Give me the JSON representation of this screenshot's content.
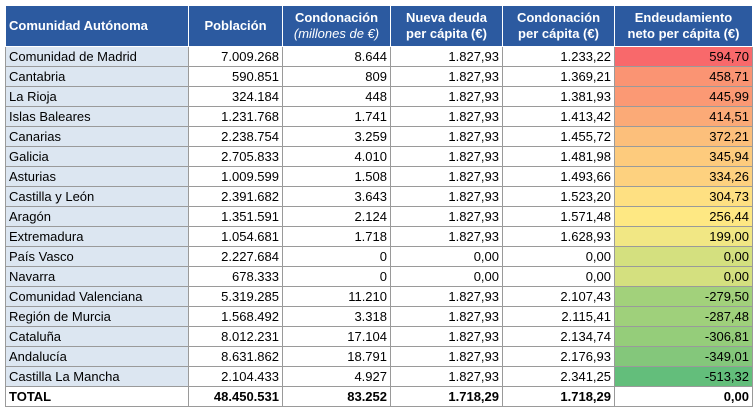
{
  "table": {
    "header": [
      [
        "Comunidad Autónoma"
      ],
      [
        "Población"
      ],
      [
        "Condonación",
        "(millones de €)"
      ],
      [
        "Nueva deuda",
        "per cápita (€)"
      ],
      [
        "Condonación",
        "per cápita (€)"
      ],
      [
        "Endeudamiento",
        "neto per cápita (€)"
      ]
    ],
    "rows": [
      [
        "Comunidad de Madrid",
        "7.009.268",
        "8.644",
        "1.827,93",
        "1.233,22",
        "594,70"
      ],
      [
        "Cantabria",
        "590.851",
        "809",
        "1.827,93",
        "1.369,21",
        "458,71"
      ],
      [
        "La Rioja",
        "324.184",
        "448",
        "1.827,93",
        "1.381,93",
        "445,99"
      ],
      [
        "Islas Baleares",
        "1.231.768",
        "1.741",
        "1.827,93",
        "1.413,42",
        "414,51"
      ],
      [
        "Canarias",
        "2.238.754",
        "3.259",
        "1.827,93",
        "1.455,72",
        "372,21"
      ],
      [
        "Galicia",
        "2.705.833",
        "4.010",
        "1.827,93",
        "1.481,98",
        "345,94"
      ],
      [
        "Asturias",
        "1.009.599",
        "1.508",
        "1.827,93",
        "1.493,66",
        "334,26"
      ],
      [
        "Castilla y León",
        "2.391.682",
        "3.643",
        "1.827,93",
        "1.523,20",
        "304,73"
      ],
      [
        "Aragón",
        "1.351.591",
        "2.124",
        "1.827,93",
        "1.571,48",
        "256,44"
      ],
      [
        "Extremadura",
        "1.054.681",
        "1.718",
        "1.827,93",
        "1.628,93",
        "199,00"
      ],
      [
        "País Vasco",
        "2.227.684",
        "0",
        "0,00",
        "0,00",
        "0,00"
      ],
      [
        "Navarra",
        "678.333",
        "0",
        "0,00",
        "0,00",
        "0,00"
      ],
      [
        "Comunidad Valenciana",
        "5.319.285",
        "11.210",
        "1.827,93",
        "2.107,43",
        "-279,50"
      ],
      [
        "Región de Murcia",
        "1.568.492",
        "3.318",
        "1.827,93",
        "2.115,41",
        "-287,48"
      ],
      [
        "Cataluña",
        "8.012.231",
        "17.104",
        "1.827,93",
        "2.134,74",
        "-306,81"
      ],
      [
        "Andalucía",
        "8.631.862",
        "18.791",
        "1.827,93",
        "2.176,93",
        "-349,01"
      ],
      [
        "Castilla La Mancha",
        "2.104.433",
        "4.927",
        "1.827,93",
        "2.341,25",
        "-513,32"
      ]
    ],
    "total": [
      "TOTAL",
      "48.450.531",
      "83.252",
      "1.718,29",
      "1.718,29",
      "0,00"
    ],
    "heat_colors": [
      "#f8696b",
      "#fa9473",
      "#fb9974",
      "#fbaa77",
      "#fcbf7b",
      "#fdcb7d",
      "#fdd17f",
      "#fee082",
      "#fee883",
      "#f1e784",
      "#d4e07f",
      "#d4e07f",
      "#a2d17b",
      "#9fd07b",
      "#95cd7a",
      "#84c77b",
      "#63be7b"
    ]
  }
}
